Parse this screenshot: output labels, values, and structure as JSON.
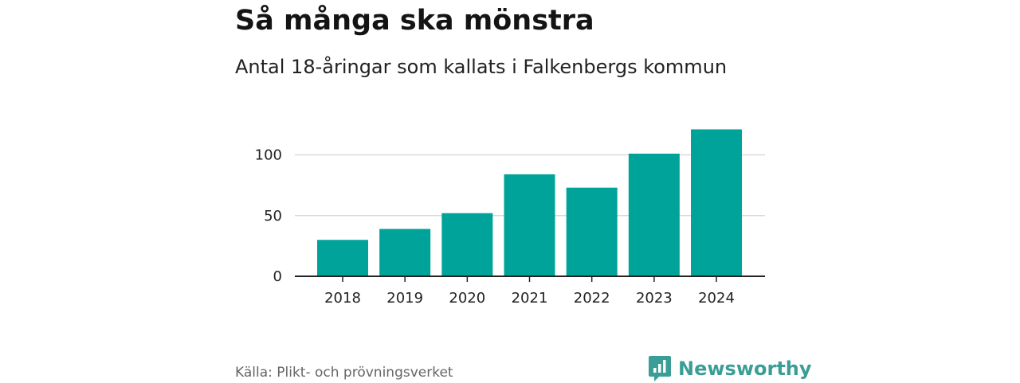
{
  "header": {
    "title": "Så många ska mönstra",
    "subtitle": "Antal 18-åringar som kallats i Falkenbergs kommun"
  },
  "footer": {
    "source": "Källa: Plikt- och prövningsverket",
    "brand": "Newsworthy",
    "brand_icon": "newsworthy-logo-icon"
  },
  "colors": {
    "bar": "#00a39a",
    "gridline": "#d9d9d9",
    "axis": "#222222",
    "brand": "#3a9e96"
  },
  "chart_data": {
    "type": "bar",
    "title": "Så många ska mönstra",
    "subtitle": "Antal 18-åringar som kallats i Falkenbergs kommun",
    "categories": [
      "2018",
      "2019",
      "2020",
      "2021",
      "2022",
      "2023",
      "2024"
    ],
    "values": [
      30,
      39,
      52,
      84,
      73,
      101,
      121
    ],
    "yticks": [
      0,
      50,
      100
    ],
    "ytick_labels": [
      "0",
      "50",
      "100"
    ],
    "ylim": [
      0,
      125
    ],
    "xlabel": "",
    "ylabel": "",
    "grid": true
  }
}
